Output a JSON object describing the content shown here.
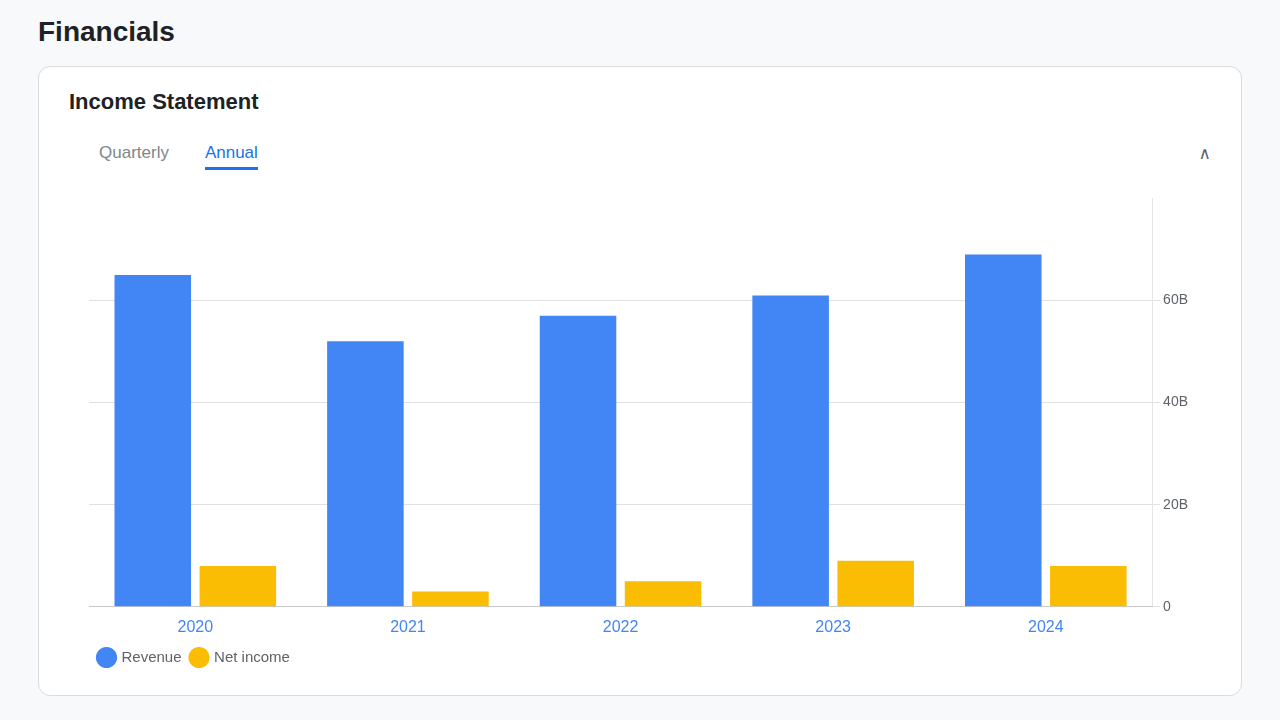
{
  "chart_data": {
    "type": "bar",
    "title": "Financials",
    "subtitle": "Income Statement",
    "annotations": [
      "Quarterly",
      "Annual",
      "∧"
    ],
    "categories": [
      "2020",
      "2021",
      "2022",
      "2023",
      "2024"
    ],
    "series": [
      {
        "name": "Revenue",
        "color": "#4285F4",
        "values": [
          65,
          52,
          57,
          61,
          69
        ]
      },
      {
        "name": "Net income",
        "color": "#FBBC04",
        "values": [
          8,
          3,
          5,
          9,
          8
        ]
      }
    ],
    "ylim": [
      0,
      80
    ],
    "yticks": [
      0,
      {
        "value": 20,
        "label": "20B"
      },
      {
        "value": 40,
        "label": "40B"
      },
      {
        "value": 60,
        "label": "60B"
      }
    ],
    "grid": true,
    "legend": "bottom"
  }
}
